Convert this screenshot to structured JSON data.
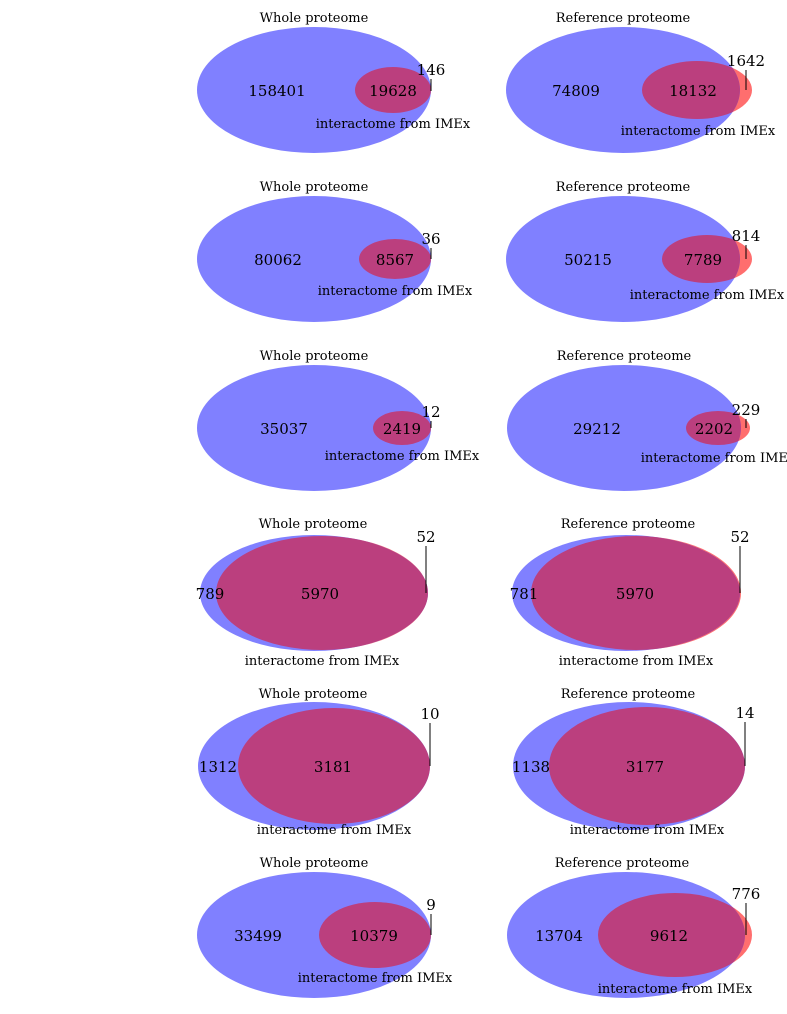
{
  "colors": {
    "set_a": "#8080ff",
    "set_b": "#ff6e6e",
    "overlap": "#bb3f7e",
    "line": "#000000"
  },
  "diagrams": [
    {
      "title": "Whole proteome",
      "set_b_label": "interactome from IMEx",
      "a_only": "158401",
      "both": "19628",
      "b_only": "146"
    },
    {
      "title": "Reference proteome",
      "set_b_label": "interactome from IMEx",
      "a_only": "74809",
      "both": "18132",
      "b_only": "1642"
    },
    {
      "title": "Whole proteome",
      "set_b_label": "interactome from IMEx",
      "a_only": "80062",
      "both": "8567",
      "b_only": "36"
    },
    {
      "title": "Reference proteome",
      "set_b_label": "interactome from IMEx",
      "a_only": "50215",
      "both": "7789",
      "b_only": "814"
    },
    {
      "title": "Whole proteome",
      "set_b_label": "interactome from IMEx",
      "a_only": "35037",
      "both": "2419",
      "b_only": "12"
    },
    {
      "title": "Reference proteome",
      "set_b_label": "interactome from IMEx",
      "a_only": "29212",
      "both": "2202",
      "b_only": "229"
    },
    {
      "title": "Whole proteome",
      "set_b_label": "interactome from IMEx",
      "a_only": "789",
      "both": "5970",
      "b_only": "52"
    },
    {
      "title": "Reference proteome",
      "set_b_label": "interactome from IMEx",
      "a_only": "781",
      "both": "5970",
      "b_only": "52"
    },
    {
      "title": "Whole proteome",
      "set_b_label": "interactome from IMEx",
      "a_only": "1312",
      "both": "3181",
      "b_only": "10"
    },
    {
      "title": "Reference proteome",
      "set_b_label": "interactome from IMEx",
      "a_only": "1138",
      "both": "3177",
      "b_only": "14"
    },
    {
      "title": "Whole proteome",
      "set_b_label": "interactome from IMEx",
      "a_only": "33499",
      "both": "10379",
      "b_only": "9"
    },
    {
      "title": "Reference proteome",
      "set_b_label": "interactome from IMEx",
      "a_only": "13704",
      "both": "9612",
      "b_only": "776"
    }
  ]
}
